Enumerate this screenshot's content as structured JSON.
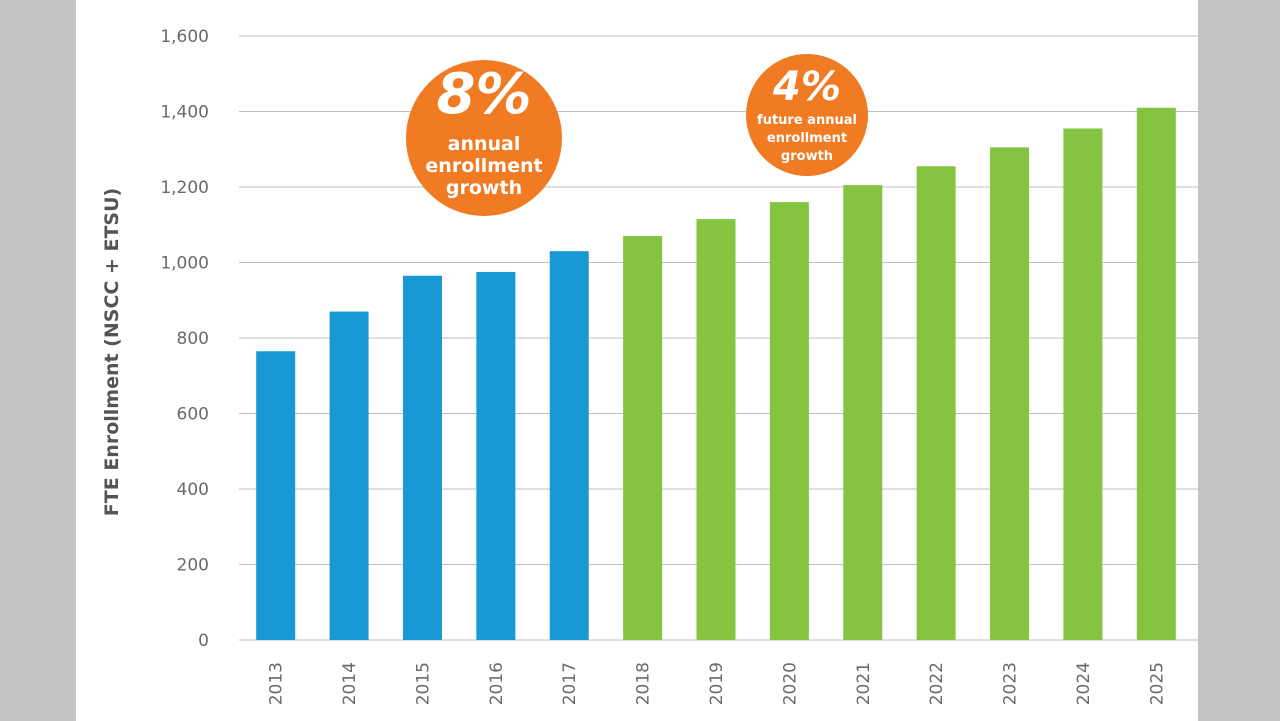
{
  "chart_data": {
    "type": "bar",
    "ylabel": "FTE Enrollment (NSCC + ETSU)",
    "xlabel": "",
    "ylim": [
      0,
      1600
    ],
    "yticks": [
      0,
      200,
      400,
      600,
      800,
      1000,
      1200,
      1400,
      1600
    ],
    "ytick_labels": [
      "0",
      "200",
      "400",
      "600",
      "800",
      "1,000",
      "1,200",
      "1,400",
      "1,600"
    ],
    "grid": true,
    "categories": [
      "2013",
      "2014",
      "2015",
      "2016",
      "2017",
      "2018",
      "2019",
      "2020",
      "2021",
      "2022",
      "2023",
      "2024",
      "2025"
    ],
    "values": [
      765,
      870,
      965,
      975,
      1030,
      1070,
      1115,
      1160,
      1205,
      1255,
      1305,
      1355,
      1410
    ],
    "bar_colors": [
      "#1899d6",
      "#1899d6",
      "#1899d6",
      "#1899d6",
      "#1899d6",
      "#84c441",
      "#84c441",
      "#84c441",
      "#84c441",
      "#84c441",
      "#84c441",
      "#84c441",
      "#84c441"
    ],
    "annotations": [
      {
        "big": "8%",
        "lines": [
          "annual",
          "enrollment",
          "growth"
        ],
        "color": "#f07b23"
      },
      {
        "big": "4%",
        "lines": [
          "future annual",
          "enrollment",
          "growth"
        ],
        "color": "#f07b23"
      }
    ]
  },
  "colors": {
    "grid": "#bfbfbf",
    "background": "#ffffff",
    "frame": "#c4c4c4"
  }
}
